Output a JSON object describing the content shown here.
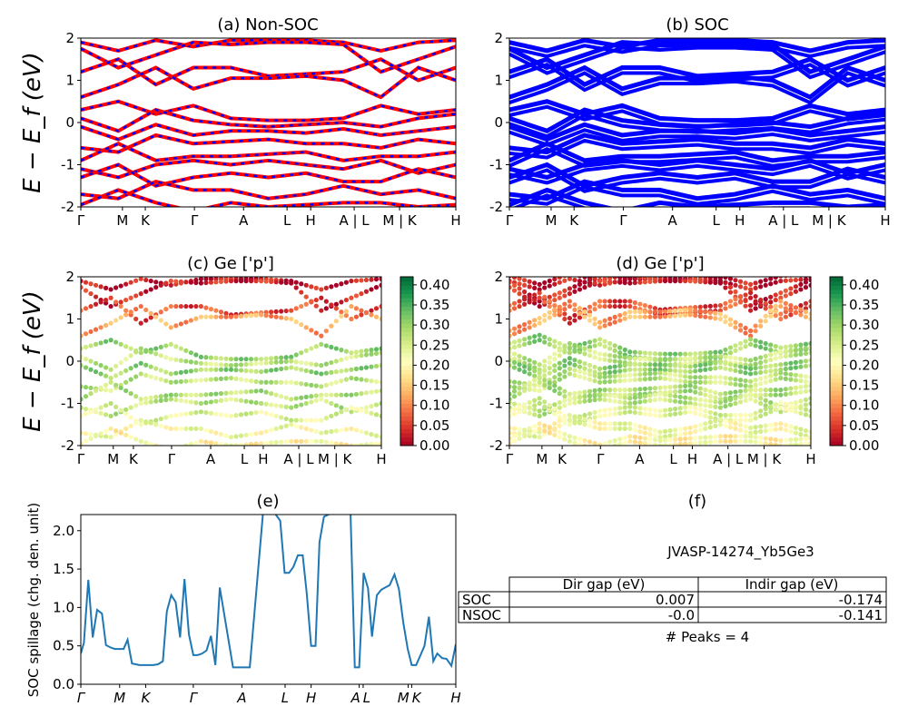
{
  "chart_data": [
    {
      "panel": "a",
      "type": "line",
      "title": "(a) Non-SOC",
      "ylabel": "E − E_f (eV)",
      "ylim": [
        -2,
        2
      ],
      "yticks": [
        -2,
        -1,
        0,
        1,
        2
      ],
      "xticks": {
        "labels": [
          "Γ",
          "M",
          "K",
          "Γ",
          "A",
          "L",
          "H",
          "A | L",
          "M | K",
          "H"
        ],
        "pos": [
          0,
          0.111,
          0.172,
          0.303,
          0.434,
          0.55,
          0.613,
          0.729,
          0.85,
          1
        ]
      },
      "colors": {
        "line": "#ff0000",
        "dash": "#0000ff"
      }
    },
    {
      "panel": "b",
      "type": "line",
      "title": "(b) SOC",
      "ylim": [
        -2,
        2
      ],
      "yticks": [
        -2,
        -1,
        0,
        1,
        2
      ],
      "xticks": {
        "labels": [
          "Γ",
          "M",
          "K",
          "Γ",
          "A",
          "L",
          "H",
          "A | L",
          "M | K",
          "H"
        ],
        "pos": [
          0,
          0.111,
          0.172,
          0.303,
          0.434,
          0.55,
          0.613,
          0.729,
          0.85,
          1
        ]
      },
      "colors": {
        "line": "#0000ff"
      }
    },
    {
      "panel": "c",
      "type": "scatter",
      "title": "(c)  Ge ['p']",
      "ylabel": "E − E_f (eV)",
      "ylim": [
        -2,
        2
      ],
      "yticks": [
        -2,
        -1,
        0,
        1,
        2
      ],
      "xticks": {
        "labels": [
          "Γ",
          "M",
          "K",
          "Γ",
          "A",
          "L",
          "H",
          "A | L",
          "M | K",
          "H"
        ],
        "pos": [
          0,
          0.108,
          0.175,
          0.302,
          0.432,
          0.544,
          0.607,
          0.725,
          0.845,
          1
        ]
      },
      "colorbar": {
        "range": [
          0,
          0.42
        ],
        "ticks": [
          "0.00",
          "0.05",
          "0.10",
          "0.15",
          "0.20",
          "0.25",
          "0.30",
          "0.35",
          "0.40"
        ],
        "colormap": "RdYlGn"
      }
    },
    {
      "panel": "d",
      "type": "scatter",
      "title": "(d) Ge ['p']",
      "ylim": [
        -2,
        2
      ],
      "yticks": [
        -2,
        -1,
        0,
        1,
        2
      ],
      "xticks": {
        "labels": [
          "Γ",
          "M",
          "K",
          "Γ",
          "A",
          "L",
          "H",
          "A | L",
          "M | K",
          "H"
        ],
        "pos": [
          0,
          0.108,
          0.175,
          0.302,
          0.432,
          0.544,
          0.607,
          0.725,
          0.845,
          1
        ]
      },
      "colorbar": {
        "range": [
          0,
          0.42
        ],
        "ticks": [
          "0.00",
          "0.05",
          "0.10",
          "0.15",
          "0.20",
          "0.25",
          "0.30",
          "0.35",
          "0.40"
        ],
        "colormap": "RdYlGn"
      }
    },
    {
      "panel": "e",
      "type": "line",
      "title": "(e)",
      "ylabel": "SOC spillage (chg. den. unit)",
      "ylim": [
        0,
        2.21
      ],
      "yticks": [
        "0.0",
        "0.5",
        "1.0",
        "1.5",
        "2.0"
      ],
      "xlim": [
        0,
        85
      ],
      "xticks": {
        "labels": [
          "Γ",
          "M",
          "K",
          "Γ",
          "A",
          "L",
          "H",
          "A",
          "L",
          "M",
          "K",
          "H"
        ],
        "pos": [
          0,
          8.8,
          14.7,
          25.5,
          36.5,
          46.3,
          52.2,
          63.1,
          64,
          74.2,
          75,
          85
        ]
      },
      "color": "#1f77b4",
      "x": [
        0,
        0.7,
        1.7,
        2.7,
        3.7,
        4.8,
        5.7,
        6.7,
        7.7,
        9.7,
        10.6,
        11.6,
        13.3,
        14.7,
        16.4,
        17.5,
        18.6,
        19.5,
        20.5,
        21.5,
        22.5,
        23.5,
        24.5,
        25.5,
        26.5,
        27.5,
        28.5,
        29.5,
        30.5,
        31.5,
        34.5,
        37.4,
        38.3,
        41.4,
        43.2,
        44.3,
        45.2,
        46.2,
        47.2,
        48.2,
        49.2,
        50.3,
        51.2,
        52.2,
        53.2,
        54.1,
        55.1,
        56.1,
        61.1,
        62.1,
        63.1,
        64.1,
        65.1,
        66.0,
        67.1,
        68.1,
        69.0,
        70.0,
        71.1,
        72.1,
        73.1,
        74.1,
        75.0,
        76.0,
        77.0,
        77.9,
        78.9,
        79.9,
        80.8,
        81.9,
        82.9,
        84.0,
        85.0
      ],
      "y": [
        0.4,
        0.54,
        1.36,
        0.61,
        0.97,
        0.92,
        0.51,
        0.48,
        0.46,
        0.46,
        0.58,
        0.27,
        0.25,
        0.25,
        0.25,
        0.26,
        0.3,
        0.95,
        1.16,
        1.07,
        0.61,
        1.37,
        0.65,
        0.38,
        0.38,
        0.4,
        0.44,
        0.63,
        0.25,
        1.26,
        0.22,
        0.22,
        0.22,
        2.3,
        2.3,
        2.2,
        2.13,
        1.45,
        1.45,
        1.53,
        1.68,
        1.68,
        1.19,
        0.5,
        0.5,
        1.85,
        2.18,
        2.21,
        2.3,
        0.22,
        0.22,
        1.45,
        1.25,
        0.62,
        1.16,
        1.23,
        1.26,
        1.29,
        1.43,
        1.24,
        0.8,
        0.46,
        0.25,
        0.25,
        0.38,
        0.5,
        0.88,
        0.3,
        0.4,
        0.34,
        0.33,
        0.24,
        0.52
      ]
    },
    {
      "panel": "f",
      "type": "table",
      "title": "(f)",
      "subtitle": "JVASP-14274_Yb5Ge3",
      "columns": [
        "",
        "Dir gap (eV)",
        "Indir gap (eV)"
      ],
      "rows": [
        [
          "SOC",
          "0.007",
          "-0.174"
        ],
        [
          "NSOC",
          "-0.0",
          "-0.141"
        ]
      ],
      "footer": "# Peaks = 4"
    }
  ],
  "bands": {
    "x": [
      0,
      0.1,
      0.2,
      0.3,
      0.4,
      0.5,
      0.6,
      0.7,
      0.8,
      0.9,
      1.0
    ],
    "energies": [
      [
        1.9,
        1.7,
        1.95,
        1.8,
        1.95,
        1.95,
        1.95,
        1.9,
        1.7,
        1.9,
        1.95
      ],
      [
        1.75,
        1.3,
        1.6,
        1.9,
        1.85,
        1.9,
        1.9,
        1.85,
        1.2,
        1.5,
        1.8
      ],
      [
        1.2,
        1.5,
        0.9,
        1.3,
        1.3,
        1.1,
        1.15,
        1.2,
        1.5,
        1.0,
        1.3
      ],
      [
        0.6,
        0.9,
        1.3,
        0.8,
        1.05,
        1.05,
        1.1,
        1.0,
        0.6,
        1.3,
        1.0
      ],
      [
        0.3,
        0.5,
        0.2,
        0.4,
        0.1,
        0.05,
        0.05,
        0.1,
        0.4,
        0.2,
        0.3
      ],
      [
        0.1,
        -0.2,
        0.3,
        0.05,
        -0.05,
        -0.1,
        -0.05,
        0.0,
        -0.1,
        0.1,
        0.2
      ],
      [
        -0.1,
        -0.4,
        -0.05,
        -0.3,
        -0.2,
        -0.2,
        -0.25,
        -0.15,
        -0.3,
        -0.2,
        -0.1
      ],
      [
        -0.6,
        -0.7,
        -0.3,
        -0.5,
        -0.45,
        -0.4,
        -0.5,
        -0.5,
        -0.6,
        -0.4,
        -0.5
      ],
      [
        -0.9,
        -0.5,
        -0.9,
        -0.8,
        -0.8,
        -0.75,
        -0.7,
        -0.9,
        -0.8,
        -0.8,
        -0.7
      ],
      [
        -1.1,
        -1.3,
        -1.0,
        -0.9,
        -1.0,
        -0.9,
        -1.0,
        -1.1,
        -0.9,
        -1.2,
        -1.0
      ],
      [
        -1.3,
        -1.0,
        -1.5,
        -1.3,
        -1.2,
        -1.3,
        -1.2,
        -1.4,
        -1.4,
        -1.1,
        -1.3
      ],
      [
        -1.7,
        -1.8,
        -1.4,
        -1.6,
        -1.6,
        -1.8,
        -1.7,
        -1.5,
        -1.7,
        -1.6,
        -1.8
      ],
      [
        -1.95,
        -1.6,
        -1.9,
        -2.1,
        -1.9,
        -2.0,
        -1.95,
        -1.9,
        -1.9,
        -2.0,
        -1.95
      ]
    ],
    "ge_p_weight": [
      0.02,
      0.03,
      0.06,
      0.12,
      0.3,
      0.27,
      0.3,
      0.27,
      0.28,
      0.27,
      0.24,
      0.22,
      0.2
    ]
  }
}
